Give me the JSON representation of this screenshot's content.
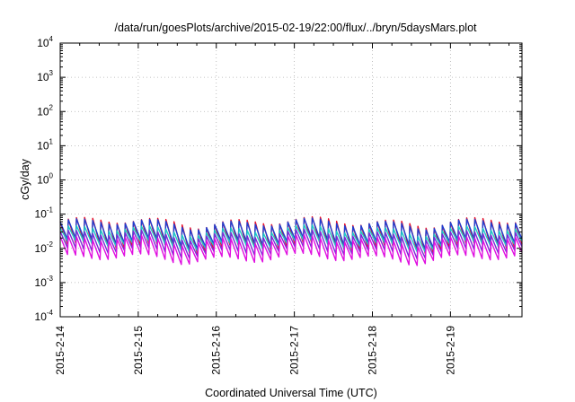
{
  "chart_data": {
    "type": "line",
    "title": "/data/run/goesPlots/archive/2015-02-19/22:00/flux/../bryn/5daysMars.plot",
    "xlabel": "Coordinated Universal Time (UTC)",
    "ylabel": "cGy/day",
    "y_scale": "log",
    "ylim": [
      0.0001,
      10000
    ],
    "xlim": [
      "2015-02-14 00:00",
      "2015-02-19 22:00"
    ],
    "grid": true,
    "y_ticks": [
      {
        "base": "10",
        "exp": "-4",
        "value": 0.0001
      },
      {
        "base": "10",
        "exp": "-3",
        "value": 0.001
      },
      {
        "base": "10",
        "exp": "-2",
        "value": 0.01
      },
      {
        "base": "10",
        "exp": "-1",
        "value": 0.1
      },
      {
        "base": "10",
        "exp": "0",
        "value": 1
      },
      {
        "base": "10",
        "exp": "1",
        "value": 10
      },
      {
        "base": "10",
        "exp": "2",
        "value": 100
      },
      {
        "base": "10",
        "exp": "3",
        "value": 1000
      },
      {
        "base": "10",
        "exp": "4",
        "value": 10000
      }
    ],
    "x_ticks": [
      "2015-2-14",
      "2015-2-15",
      "2015-2-16",
      "2015-2-17",
      "2015-2-18",
      "2015-2-19"
    ],
    "sawtooth_period_hours": 2.5,
    "series": [
      {
        "color": "#e8102a",
        "peak": 0.06,
        "trough": 0.009
      },
      {
        "color": "#1f3fd0",
        "peak": 0.055,
        "trough": 0.013
      },
      {
        "color": "#1fc8c8",
        "peak": 0.035,
        "trough": 0.011
      },
      {
        "color": "#7a2ad6",
        "peak": 0.026,
        "trough": 0.007
      },
      {
        "color": "#e010e0",
        "peak": 0.018,
        "trough": 0.0045
      }
    ]
  }
}
